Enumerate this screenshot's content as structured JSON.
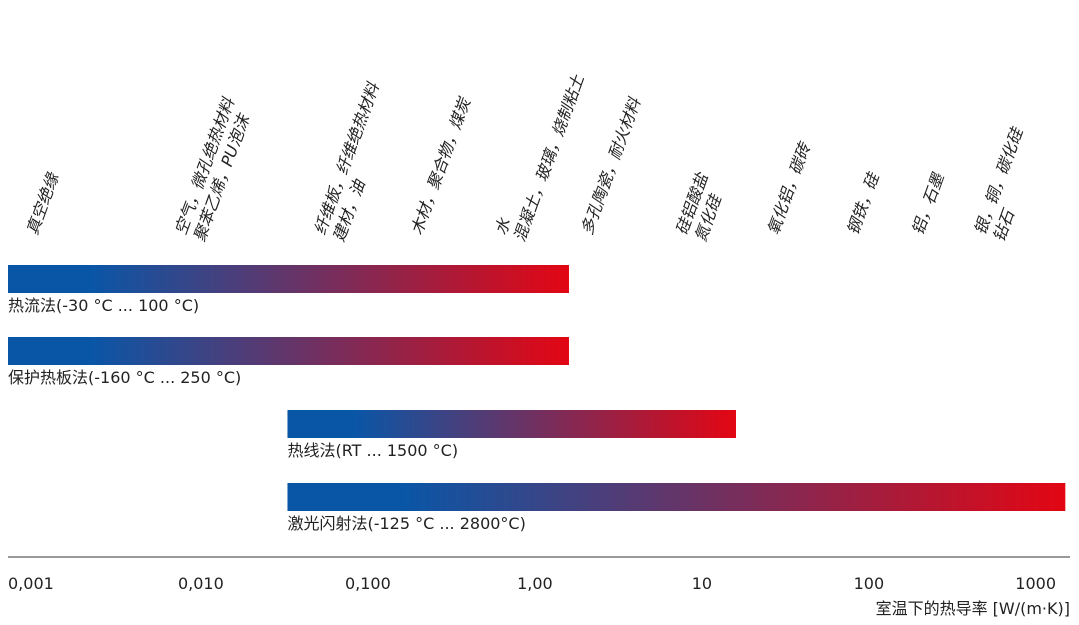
{
  "chart_data": {
    "type": "range_bar",
    "xscale": "log",
    "xlim": [
      0.0007,
      1600
    ],
    "xticks": [
      {
        "value": 0.001,
        "label": "0,001"
      },
      {
        "value": 0.01,
        "label": "0,010"
      },
      {
        "value": 0.1,
        "label": "0,100"
      },
      {
        "value": 1,
        "label": "1,00"
      },
      10,
      100,
      1000
    ],
    "x_label": "室温下的热导率 [W/(m·K)]",
    "gradient": [
      "#0a56a6",
      "#e30613"
    ],
    "series": [
      {
        "name": "热流法(-30 °C ... 100 °C)",
        "values": [
          0.0007,
          1.6
        ]
      },
      {
        "name": "保护热板法(-160 °C ... 250 °C)",
        "values": [
          0.0007,
          1.6
        ]
      },
      {
        "name": "热线法(RT ... 1500 °C)",
        "values": [
          0.033,
          16
        ]
      },
      {
        "name": "激光闪射法(-125 °C ... 2800°C)",
        "values": [
          0.033,
          1500
        ]
      }
    ],
    "materials": [
      {
        "lines": [
          "真空绝缘"
        ],
        "x": 0.0011
      },
      {
        "lines": [
          "空气，微孔绝热材料",
          "聚苯乙烯，PU泡沫"
        ],
        "x": 0.0085
      },
      {
        "lines": [
          "纤维板，纤维绝热材料",
          "建材，油"
        ],
        "x": 0.058
      },
      {
        "lines": [
          "木材，聚合物，煤炭"
        ],
        "x": 0.22
      },
      {
        "lines": [
          "水",
          "混凝土，玻璃，烧制粘土"
        ],
        "x": 0.7
      },
      {
        "lines": [
          "多孔陶瓷，耐火材料"
        ],
        "x": 2.3
      },
      {
        "lines": [
          "硅铝酸盐",
          "氮化硅"
        ],
        "x": 8.5
      },
      {
        "lines": [
          "氧化铝，碳砖"
        ],
        "x": 30
      },
      {
        "lines": [
          "钢铁，硅"
        ],
        "x": 90
      },
      {
        "lines": [
          "铝，石墨"
        ],
        "x": 220
      },
      {
        "lines": [
          "银，铜，碳化硅",
          "钻石"
        ],
        "x": 520
      }
    ]
  }
}
